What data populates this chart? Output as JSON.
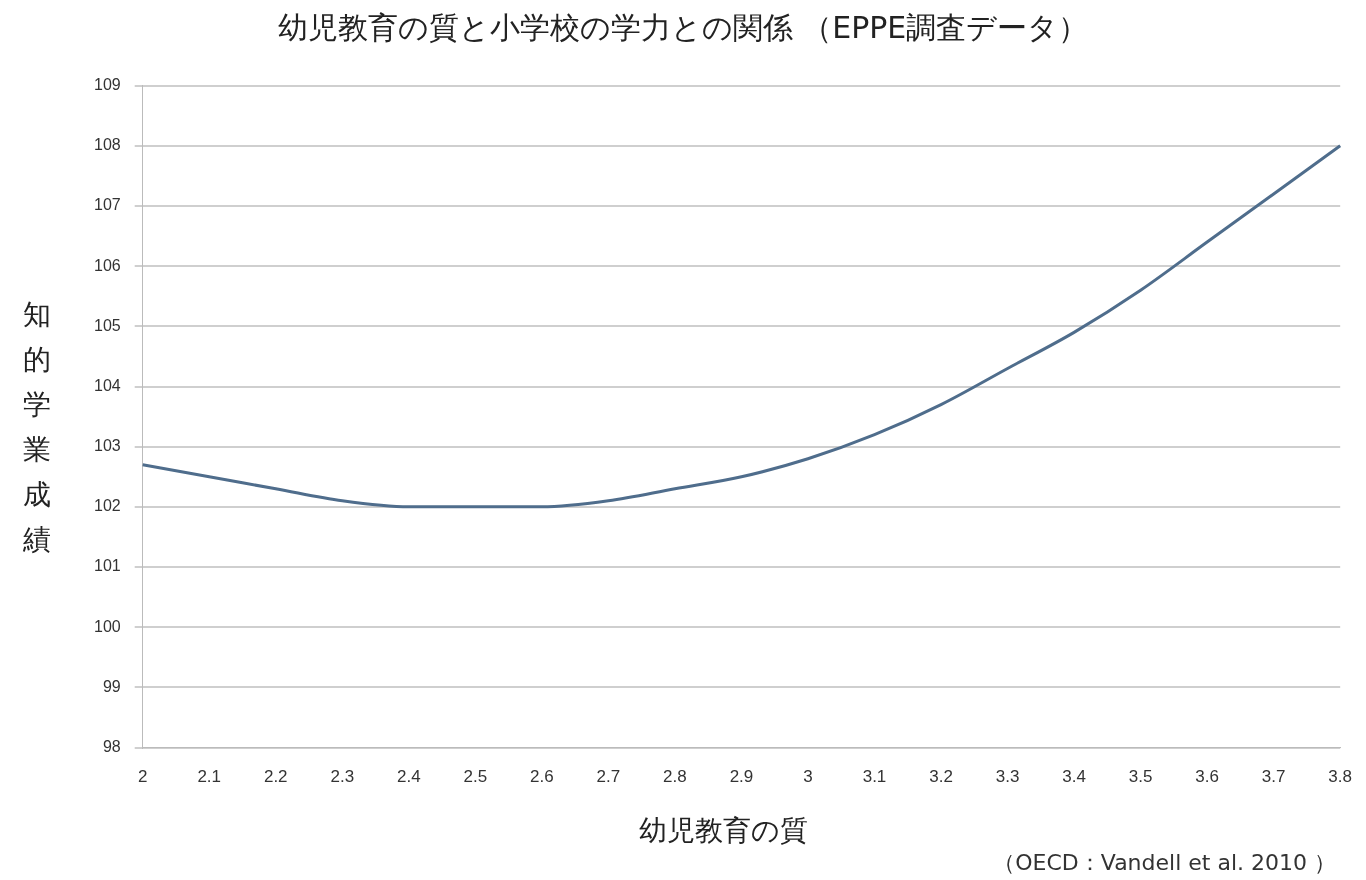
{
  "chart_data": {
    "type": "line",
    "title": "幼児教育の質と小学校の学力との関係 （EPPE調査データ）",
    "xlabel": "幼児教育の質",
    "ylabel": "知的学業成績",
    "annotations": [
      "（OECD：Vandell et al. 2010 ）"
    ],
    "categories": [
      "2",
      "2.1",
      "2.2",
      "2.3",
      "2.4",
      "2.5",
      "2.6",
      "2.7",
      "2.8",
      "2.9",
      "3",
      "3.1",
      "3.2",
      "3.3",
      "3.4",
      "3.5",
      "3.6",
      "3.7",
      "3.8"
    ],
    "series": [
      {
        "color": "#4f6d8c",
        "values": [
          102.7,
          102.5,
          102.3,
          102.1,
          102.0,
          102.0,
          102.0,
          102.1,
          102.3,
          102.5,
          102.8,
          103.2,
          103.7,
          104.3,
          104.9,
          105.6,
          106.4,
          107.2,
          108.0
        ]
      }
    ],
    "ylim": [
      98,
      109
    ],
    "yticks": [
      98,
      99,
      100,
      101,
      102,
      103,
      104,
      105,
      106,
      107,
      108,
      109
    ],
    "grid": "y",
    "legend": false,
    "marker": "none"
  }
}
